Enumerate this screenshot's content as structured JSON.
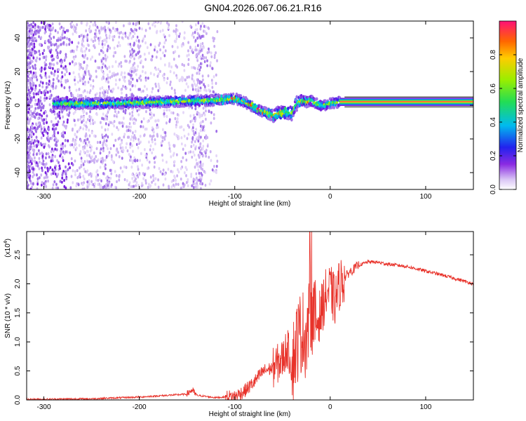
{
  "title": "GN04.2026.067.06.21.R16",
  "chart_data": [
    {
      "type": "heatmap",
      "name": "spectrogram",
      "xlabel": "Height of straight line (km)",
      "ylabel": "Frequency (Hz)",
      "xlim": [
        -318,
        150
      ],
      "ylim": [
        -50,
        50
      ],
      "xticks": [
        -300,
        -200,
        -100,
        0,
        100
      ],
      "yticks": [
        -40,
        -20,
        0,
        20,
        40
      ],
      "xtick_labels": [
        "-300",
        "-200",
        "-100",
        "0",
        "100"
      ],
      "ytick_labels": [
        "-40",
        "-20",
        "0",
        "20",
        "40"
      ],
      "ridge": {
        "x": [
          -285,
          -250,
          -200,
          -150,
          -120,
          -100,
          -90,
          -80,
          -70,
          -60,
          -55,
          -45,
          -40,
          -35,
          -30,
          -25,
          -20,
          -15,
          -10,
          -5,
          0,
          10,
          150
        ],
        "freq": [
          1,
          1,
          1.5,
          2.5,
          3,
          4,
          2,
          -1,
          -4,
          -6,
          -5,
          -4,
          -5,
          1,
          3,
          2,
          3,
          1,
          0,
          0,
          1,
          2,
          2
        ]
      },
      "colorbar": {
        "label": "Normalized spectral amplitude",
        "range": [
          0,
          1
        ],
        "ticks": [
          0.0,
          0.2,
          0.4,
          0.6,
          0.8
        ],
        "tick_labels": [
          "0.0",
          "0.2",
          "0.4",
          "0.6",
          "0.8"
        ]
      }
    },
    {
      "type": "line",
      "name": "snr",
      "xlabel": "Height of straight line (km)",
      "ylabel": "SNR (10 * v/v)",
      "y_multiplier": "(x10",
      "y_multiplier_exp": "4",
      "y_multiplier_close": ")",
      "xlim": [
        -318,
        150
      ],
      "ylim": [
        0,
        2.9
      ],
      "xticks": [
        -300,
        -200,
        -100,
        0,
        100
      ],
      "yticks": [
        0.0,
        0.5,
        1.0,
        1.5,
        2.0,
        2.5
      ],
      "xtick_labels": [
        "-300",
        "-200",
        "-100",
        "0",
        "100"
      ],
      "ytick_labels": [
        "0.0",
        "0.5",
        "1.0",
        "1.5",
        "2.0",
        "2.5"
      ],
      "series": [
        {
          "name": "SNR",
          "color": "#e8322a",
          "x": [
            -318,
            -250,
            -200,
            -150,
            -145,
            -140,
            -120,
            -100,
            -90,
            -80,
            -70,
            -60,
            -50,
            -45,
            -40,
            -35,
            -30,
            -25,
            -20,
            -15,
            -10,
            -5,
            0,
            5,
            10,
            20,
            30,
            40,
            50,
            60,
            80,
            100,
            120,
            150
          ],
          "y": [
            0.01,
            0.02,
            0.05,
            0.1,
            0.17,
            0.08,
            0.04,
            0.06,
            0.15,
            0.3,
            0.5,
            0.55,
            0.7,
            0.9,
            0.6,
            1.0,
            1.2,
            1.1,
            1.6,
            1.3,
            1.5,
            1.8,
            1.9,
            1.7,
            2.0,
            2.2,
            2.32,
            2.38,
            2.37,
            2.34,
            2.3,
            2.22,
            2.14,
            2.0
          ]
        }
      ]
    }
  ]
}
